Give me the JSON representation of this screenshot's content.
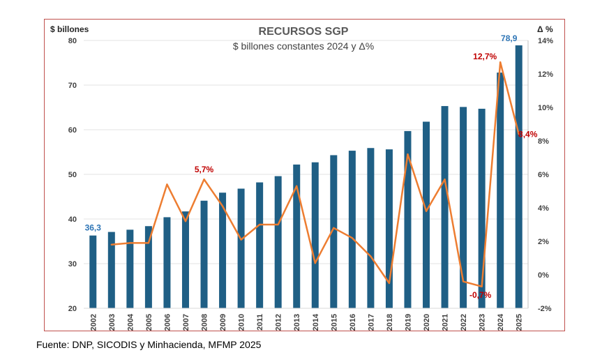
{
  "chart_data": {
    "type": "bar",
    "title": "RECURSOS SGP",
    "subtitle": "$ billones constantes 2024 y Δ%",
    "ylabel_left": "$ billones",
    "ylabel_right": "Δ %",
    "ylim_left": [
      20,
      80
    ],
    "ylim_right": [
      -2,
      14
    ],
    "yticks_left": [
      "20",
      "30",
      "40",
      "50",
      "60",
      "70",
      "80"
    ],
    "yticks_right": [
      "-2%",
      "0%",
      "2%",
      "4%",
      "6%",
      "8%",
      "10%",
      "12%",
      "14%"
    ],
    "grid": true,
    "categories": [
      "2002",
      "2003",
      "2004",
      "2005",
      "2006",
      "2007",
      "2008",
      "2009",
      "2010",
      "2011",
      "2012",
      "2013",
      "2014",
      "2015",
      "2016",
      "2017",
      "2018",
      "2019",
      "2020",
      "2021",
      "2022",
      "2023",
      "2024",
      "2025"
    ],
    "series": [
      {
        "name": "Recursos SGP ($ billones)",
        "type": "bar",
        "axis": "left",
        "color": "#1f5f85",
        "values": [
          36.3,
          37.1,
          37.6,
          38.4,
          40.4,
          41.7,
          44.1,
          45.9,
          46.8,
          48.2,
          49.6,
          52.2,
          52.7,
          54.3,
          55.3,
          55.9,
          55.6,
          59.7,
          61.8,
          65.3,
          65.1,
          64.7,
          72.8,
          78.9
        ]
      },
      {
        "name": "Δ%",
        "type": "line",
        "axis": "right",
        "color": "#ed7d31",
        "values": [
          null,
          1.8,
          1.9,
          1.9,
          5.4,
          3.2,
          5.7,
          4.1,
          2.1,
          3.0,
          3.0,
          5.3,
          0.7,
          2.8,
          2.2,
          1.1,
          -0.5,
          7.2,
          3.8,
          5.7,
          -0.4,
          -0.7,
          12.7,
          8.4
        ]
      }
    ],
    "annotations": [
      {
        "text": "36,3",
        "category": "2002",
        "series": "bar",
        "color": "#2e75b6"
      },
      {
        "text": "78,9",
        "category": "2025",
        "series": "bar",
        "color": "#2e75b6"
      },
      {
        "text": "5,7%",
        "category": "2008",
        "series": "line",
        "color": "#c00000"
      },
      {
        "text": "12,7%",
        "category": "2024",
        "series": "line",
        "color": "#c00000"
      },
      {
        "text": "8,4%",
        "category": "2025",
        "series": "line",
        "color": "#c00000"
      },
      {
        "text": "-0,7%",
        "category": "2023",
        "series": "line",
        "color": "#c00000"
      }
    ]
  },
  "footer": {
    "source": "Fuente: DNP, SICODIS y Minhacienda, MFMP 2025"
  }
}
